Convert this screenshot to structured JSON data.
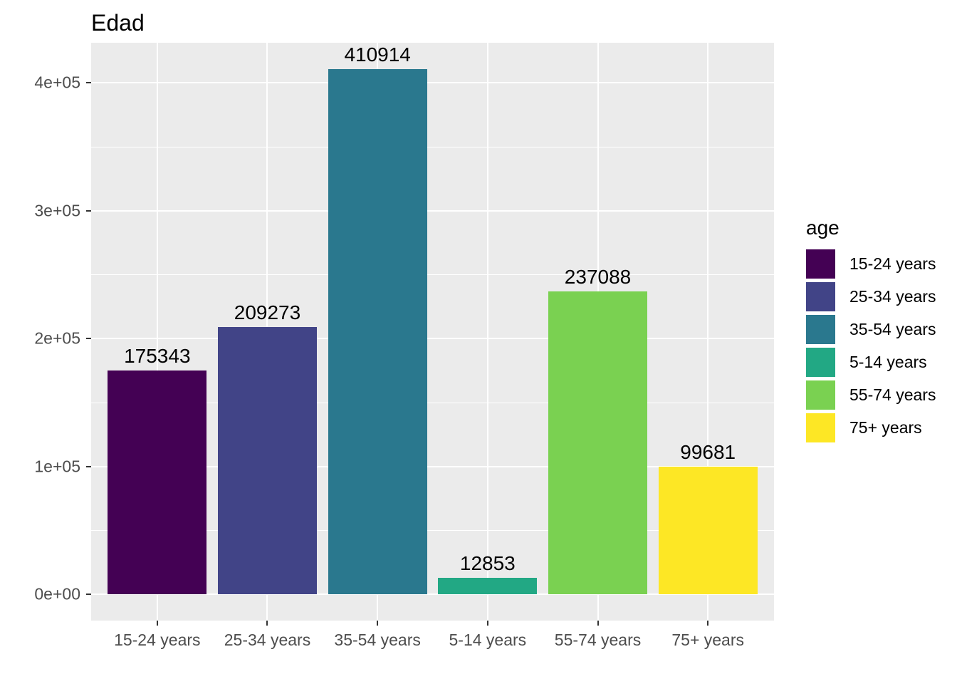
{
  "title": "Edad",
  "chart_data": {
    "type": "bar",
    "title": "Edad",
    "xlabel": "",
    "ylabel": "",
    "categories": [
      "15-24 years",
      "25-34 years",
      "35-54 years",
      "5-14 years",
      "55-74 years",
      "75+ years"
    ],
    "values": [
      175343,
      209273,
      410914,
      12853,
      237088,
      99681
    ],
    "bar_labels": [
      "175343",
      "209273",
      "410914",
      "12853",
      "237088",
      "99681"
    ],
    "colors": [
      "#440154",
      "#414487",
      "#2A788E",
      "#22A884",
      "#7AD151",
      "#FDE725"
    ],
    "bar_width_ratio": 0.9,
    "grid": true,
    "y_ticks": [
      {
        "label": "0e+00",
        "value": 0
      },
      {
        "label": "1e+05",
        "value": 100000
      },
      {
        "label": "2e+05",
        "value": 200000
      },
      {
        "label": "3e+05",
        "value": 300000
      },
      {
        "label": "4e+05",
        "value": 400000
      }
    ],
    "y_minor_values": [
      50000,
      150000,
      250000,
      350000
    ],
    "ylim_panel": [
      -20546,
      431460
    ],
    "legend": {
      "title": "age",
      "position": "right",
      "items": [
        {
          "label": "15-24 years",
          "color": "#440154"
        },
        {
          "label": "25-34 years",
          "color": "#414487"
        },
        {
          "label": "35-54 years",
          "color": "#2A788E"
        },
        {
          "label": "5-14 years",
          "color": "#22A884"
        },
        {
          "label": "55-74 years",
          "color": "#7AD151"
        },
        {
          "label": "75+ years",
          "color": "#FDE725"
        }
      ]
    }
  },
  "styles": {
    "background": "#FFFFFF",
    "panel_background": "#EBEBEB",
    "grid_color": "#FFFFFF",
    "axis_text_color": "#4D4D4D",
    "tick_color": "#333333",
    "title_color": "#000000",
    "bar_label_color": "#000000"
  }
}
